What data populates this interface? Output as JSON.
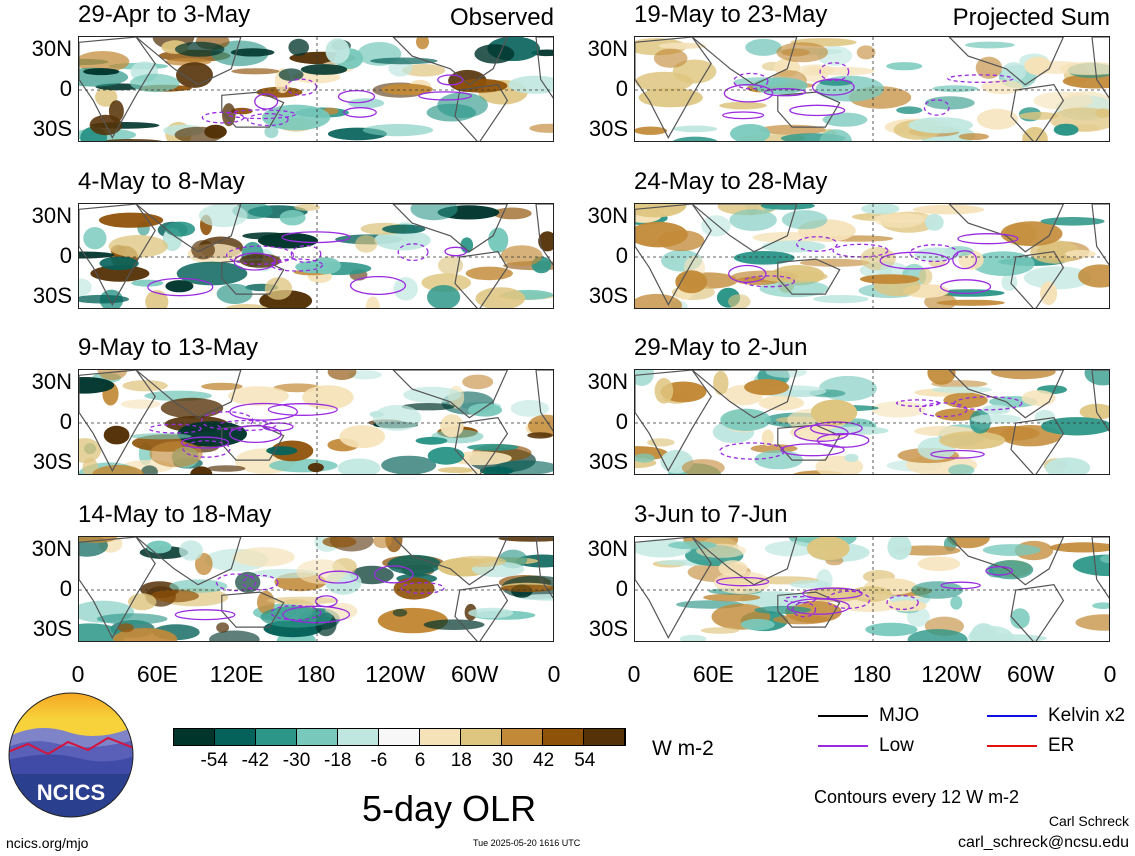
{
  "chart_data": {
    "type": "heatmap",
    "title": "5-day OLR",
    "units": "W m-2",
    "colorbar": {
      "ticks": [
        "-54",
        "-42",
        "-30",
        "-18",
        "-6",
        "6",
        "18",
        "30",
        "42",
        "54"
      ],
      "colors": [
        "#00352c",
        "#05625a",
        "#2c9688",
        "#78c9bc",
        "#bfe7e0",
        "#f7f7f7",
        "#f5e2b8",
        "#dec580",
        "#c28a38",
        "#8f5209",
        "#553208"
      ]
    },
    "x_ticks": [
      "0",
      "60E",
      "120E",
      "180",
      "120W",
      "60W",
      "0"
    ],
    "y_ticks": [
      "30N",
      "0",
      "30S"
    ],
    "panels": [
      {
        "period": "29-Apr to 3-May",
        "label": "Observed"
      },
      {
        "period": "4-May to 8-May",
        "label": ""
      },
      {
        "period": "9-May to 13-May",
        "label": ""
      },
      {
        "period": "14-May to 18-May",
        "label": ""
      },
      {
        "period": "19-May to 23-May",
        "label": "Projected Sum"
      },
      {
        "period": "24-May to 28-May",
        "label": ""
      },
      {
        "period": "29-May to 2-Jun",
        "label": ""
      },
      {
        "period": "3-Jun to 7-Jun",
        "label": ""
      }
    ],
    "contours_note": "Contours every 12 W m-2",
    "legend": [
      {
        "name": "MJO",
        "color": "#000000"
      },
      {
        "name": "Kelvin x2",
        "color": "#1010e0"
      },
      {
        "name": "Low",
        "color": "#9a2be0"
      },
      {
        "name": "ER",
        "color": "#e01010"
      }
    ]
  },
  "footer": {
    "logo_text": "NCICS",
    "url": "ncics.org/mjo",
    "timestamp": "Tue 2025-05-20 1616 UTC",
    "author": "Carl Schreck",
    "email": "carl_schreck@ncsu.edu"
  }
}
